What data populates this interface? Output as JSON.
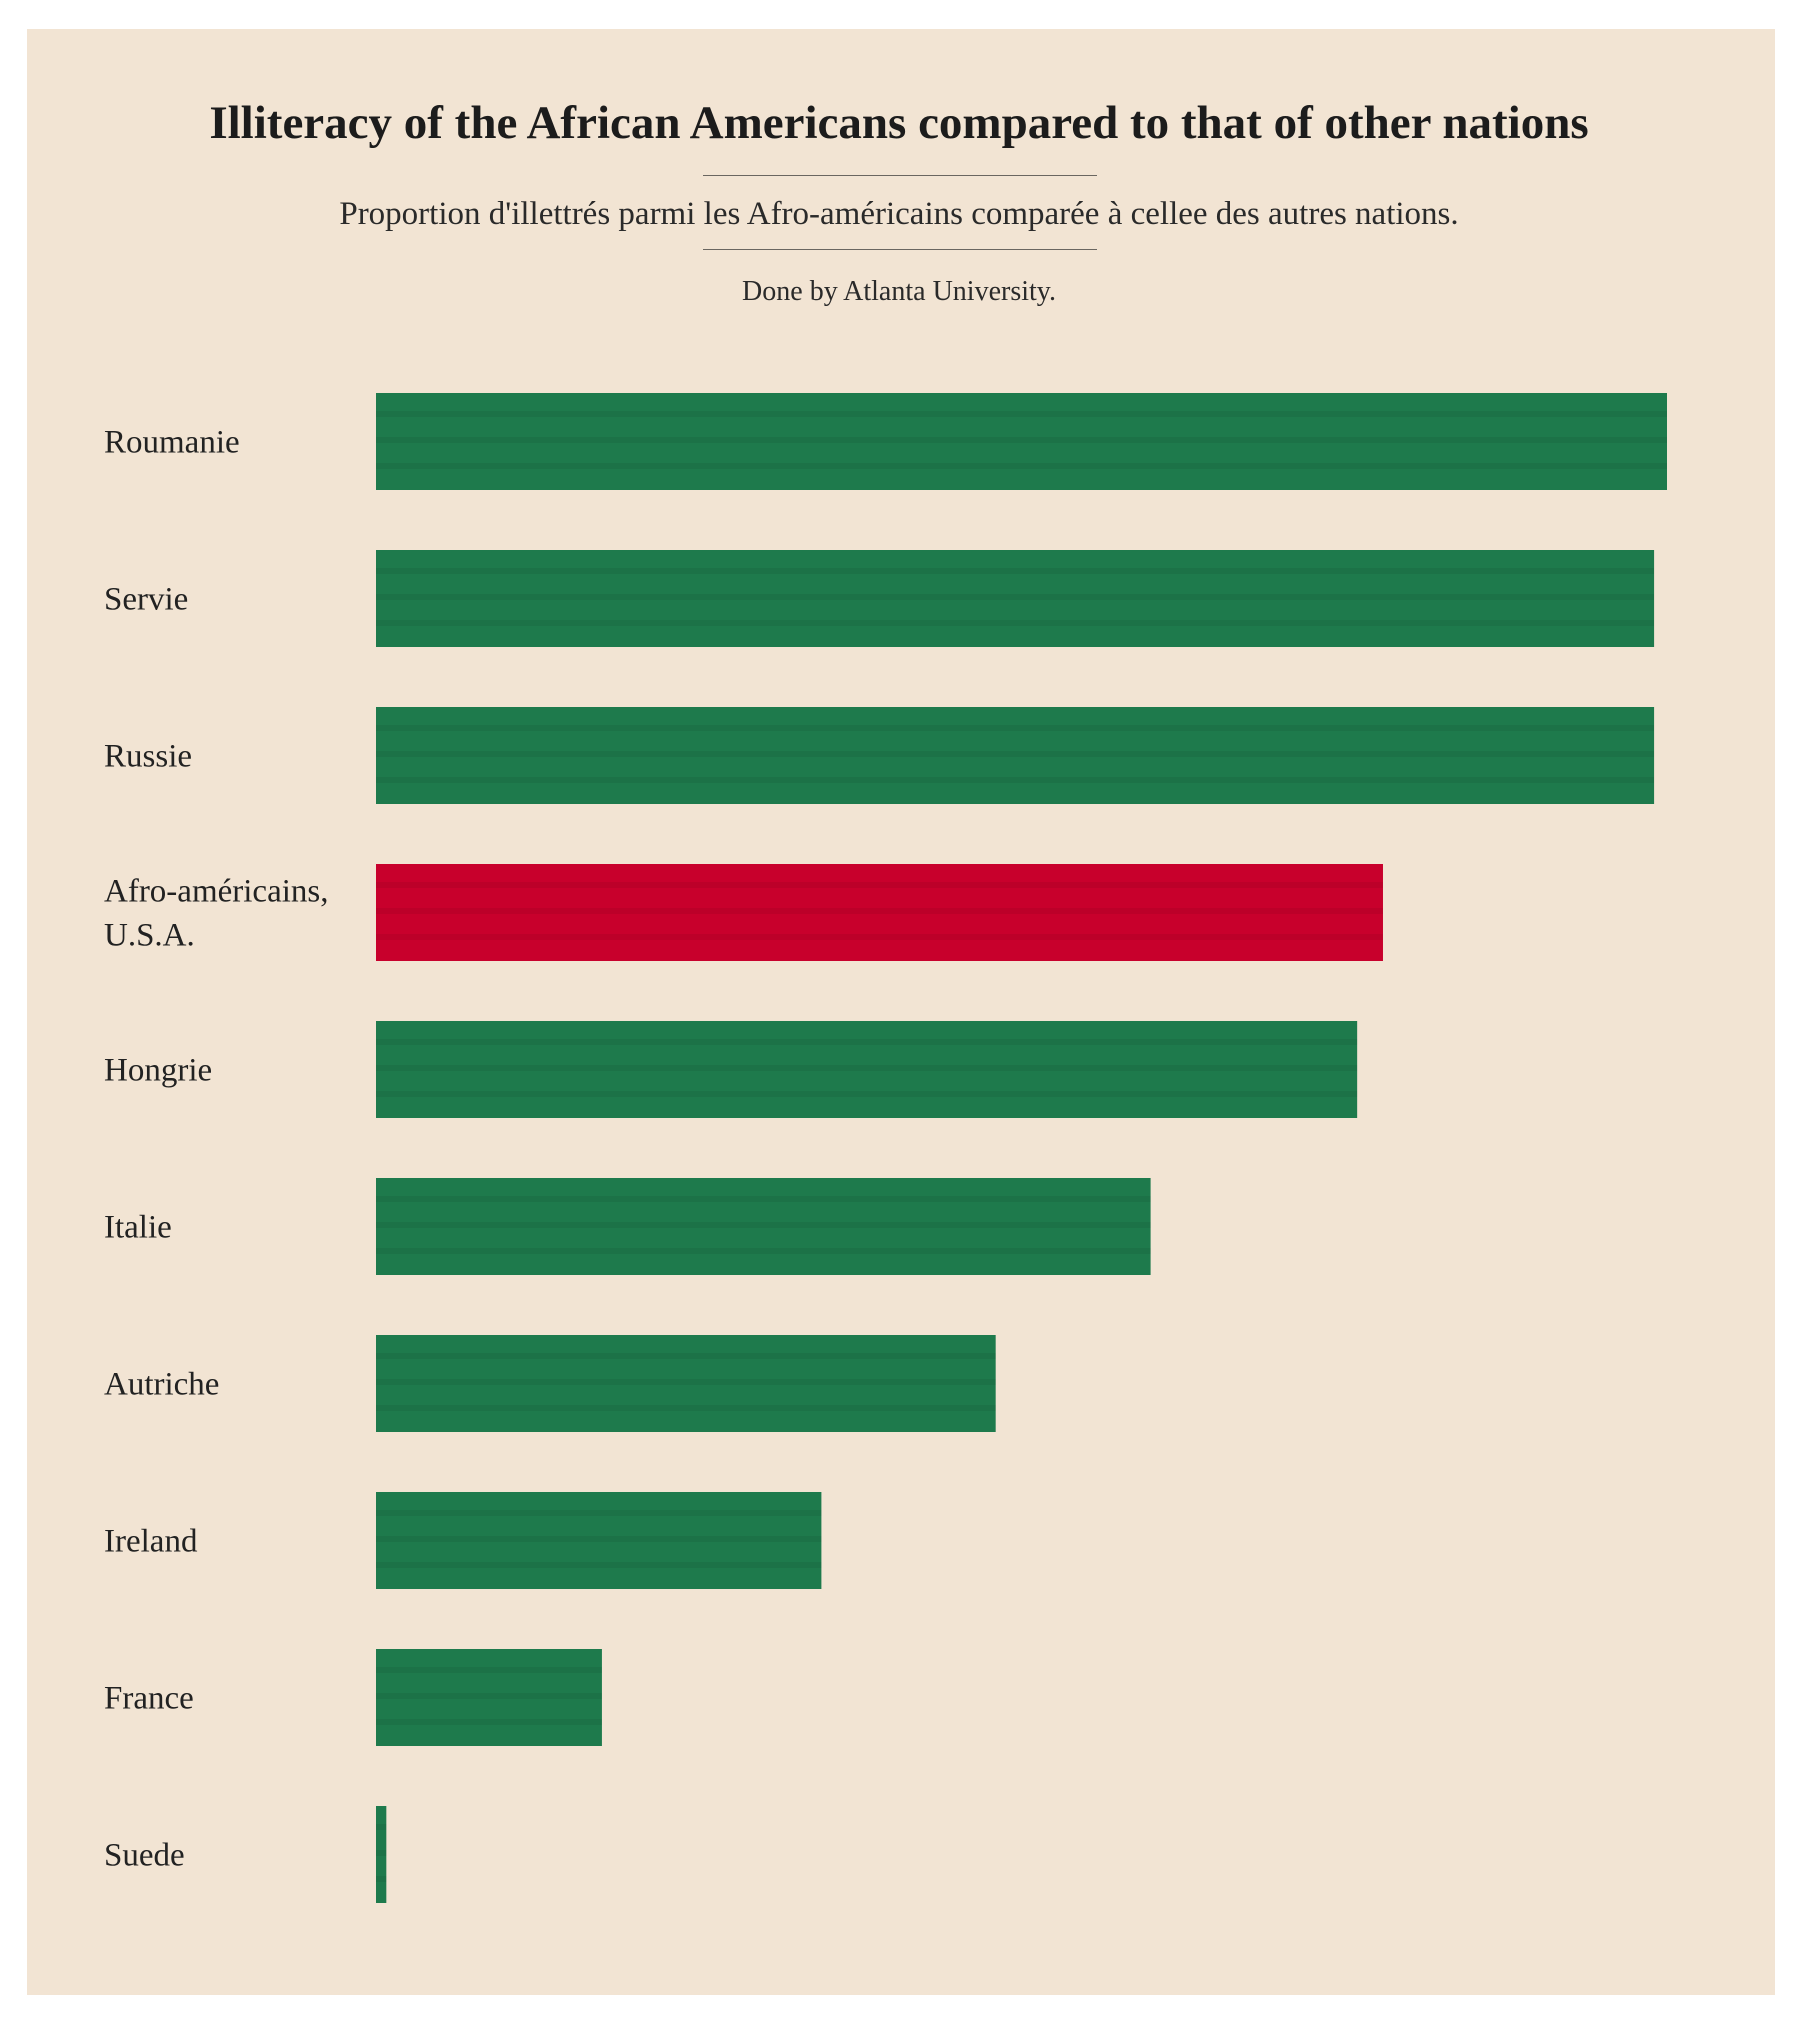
{
  "header": {
    "title": "Illiteracy of the African Americans compared to that of other nations",
    "subtitle": "Proportion d'illettrés parmi les Afro-américains comparée à cellee des autres nations.",
    "credit": "Done by Atlanta University."
  },
  "colors": {
    "background": "#f2e4d3",
    "bar_green": "#1e7a4c",
    "bar_highlight": "#c8002c"
  },
  "chart_data": {
    "type": "bar",
    "orientation": "horizontal",
    "title": "Illiteracy of the African Americans compared to that of other nations",
    "subtitle": "Proportion d'illettrés parmi les Afro-américains comparée à cellee des autres nations.",
    "categories": [
      "Roumanie",
      "Servie",
      "Russie",
      "Afro-américains, U.S.A.",
      "Hongrie",
      "Italie",
      "Autriche",
      "Ireland",
      "France",
      "Suede"
    ],
    "category_label_lines": [
      [
        "Roumanie"
      ],
      [
        "Servie"
      ],
      [
        "Russie"
      ],
      [
        "Afro-américains,",
        "U.S.A."
      ],
      [
        "Hongrie"
      ],
      [
        "Italie"
      ],
      [
        "Autriche"
      ],
      [
        "Ireland"
      ],
      [
        "France"
      ],
      [
        "Suede"
      ]
    ],
    "values": [
      100,
      99,
      99,
      78,
      76,
      60,
      48,
      34.5,
      17.5,
      0.8
    ],
    "highlight": "Afro-américains, U.S.A.",
    "xlim": [
      0,
      100
    ],
    "grid": false,
    "legend": "none",
    "xlabel": "",
    "ylabel": ""
  }
}
